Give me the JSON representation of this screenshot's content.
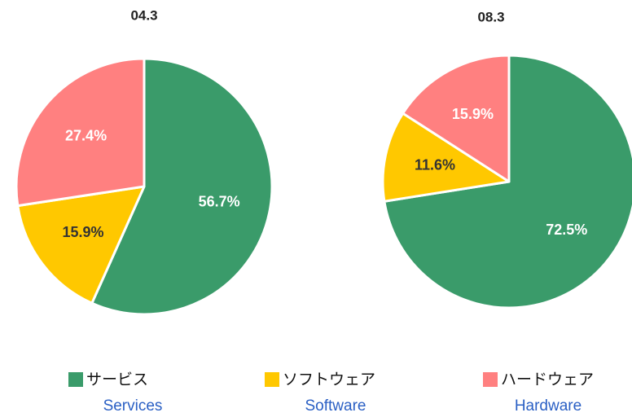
{
  "chart_data": [
    {
      "type": "pie",
      "title": "04.3",
      "values": [
        56.7,
        15.9,
        27.4
      ],
      "value_labels": [
        "56.7%",
        "15.9%",
        "27.4%"
      ]
    },
    {
      "type": "pie",
      "title": "08.3",
      "values": [
        72.5,
        11.6,
        15.9
      ],
      "value_labels": [
        "72.5%",
        "11.6%",
        "15.9%"
      ]
    }
  ],
  "legend": {
    "labels": [
      "サービス",
      "ソフトウェア",
      "ハードウェア"
    ],
    "translations": [
      "Services",
      "Software",
      "Hardware"
    ],
    "colors": [
      "#3a9b6a",
      "#ffc800",
      "#ff8080"
    ]
  }
}
